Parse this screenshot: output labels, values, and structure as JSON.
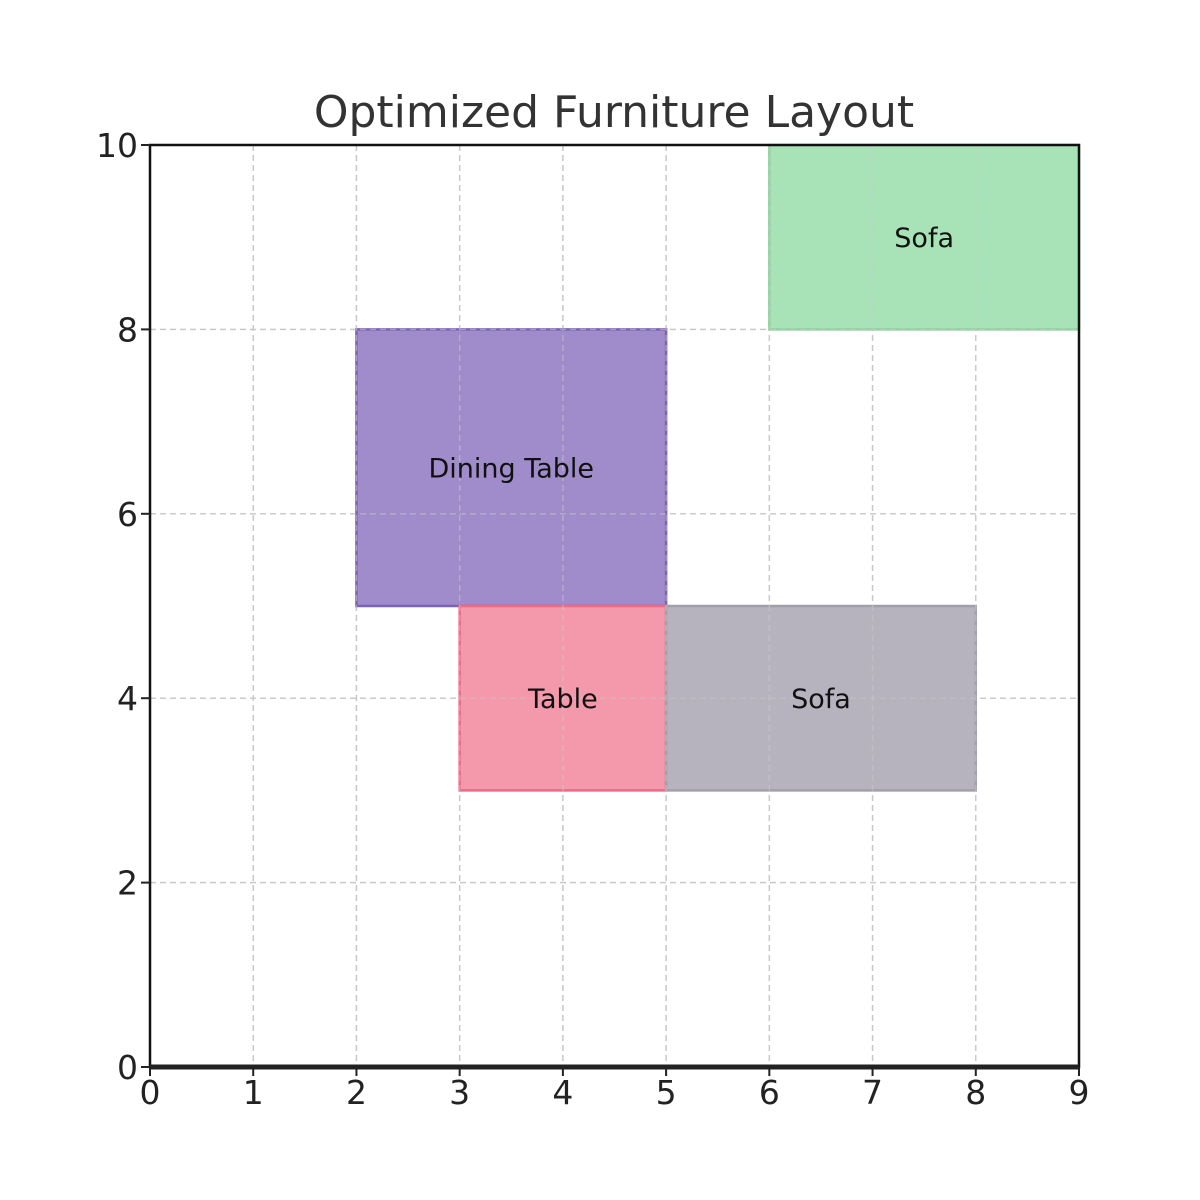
{
  "chart_data": {
    "type": "rectangles",
    "title": "Optimized Furniture Layout",
    "xlabel": "",
    "ylabel": "",
    "xlim": [
      0,
      9
    ],
    "ylim": [
      0,
      10
    ],
    "x_ticks": [
      "0",
      "1",
      "2",
      "3",
      "4",
      "5",
      "6",
      "7",
      "8",
      "9"
    ],
    "y_ticks": [
      "0",
      "2",
      "4",
      "6",
      "8",
      "10"
    ],
    "grid": true,
    "items": [
      {
        "label": "Sofa",
        "x": 6,
        "y": 8,
        "width": 3,
        "height": 2,
        "color": "#a8e3b7",
        "edge_color": "#8fd1a1"
      },
      {
        "label": "Dining Table",
        "x": 2,
        "y": 5,
        "width": 3,
        "height": 3,
        "color": "#a08cca",
        "edge_color": "#7c62b4"
      },
      {
        "label": "Table",
        "x": 3,
        "y": 3,
        "width": 2,
        "height": 2,
        "color": "#f498ab",
        "edge_color": "#ec6a87"
      },
      {
        "label": "Sofa",
        "x": 5,
        "y": 3,
        "width": 3,
        "height": 2,
        "color": "#b6b3bf",
        "edge_color": "#a29fac"
      }
    ]
  }
}
